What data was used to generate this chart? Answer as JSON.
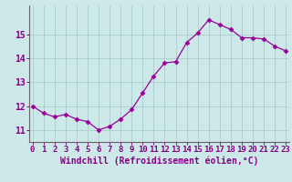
{
  "x": [
    0,
    1,
    2,
    3,
    4,
    5,
    6,
    7,
    8,
    9,
    10,
    11,
    12,
    13,
    14,
    15,
    16,
    17,
    18,
    19,
    20,
    21,
    22,
    23
  ],
  "y": [
    12.0,
    11.7,
    11.55,
    11.65,
    11.45,
    11.35,
    11.0,
    11.15,
    11.45,
    11.85,
    12.55,
    13.25,
    13.8,
    13.85,
    14.65,
    15.05,
    15.6,
    15.4,
    15.2,
    14.85,
    14.85,
    14.8,
    14.5,
    14.3
  ],
  "line_color": "#990099",
  "marker": "D",
  "marker_size": 2.5,
  "bg_color": "#cce8e8",
  "grid_color": "#aacccc",
  "xlabel": "Windchill (Refroidissement éolien,°C)",
  "ylim": [
    10.5,
    16.2
  ],
  "yticks": [
    11,
    12,
    13,
    14,
    15
  ],
  "xticks": [
    0,
    1,
    2,
    3,
    4,
    5,
    6,
    7,
    8,
    9,
    10,
    11,
    12,
    13,
    14,
    15,
    16,
    17,
    18,
    19,
    20,
    21,
    22,
    23
  ],
  "xlim": [
    -0.3,
    23.3
  ],
  "tick_color": "#880088",
  "label_color": "#880088",
  "font_size": 6.5,
  "xlabel_fontsize": 7.0,
  "lw": 0.9
}
